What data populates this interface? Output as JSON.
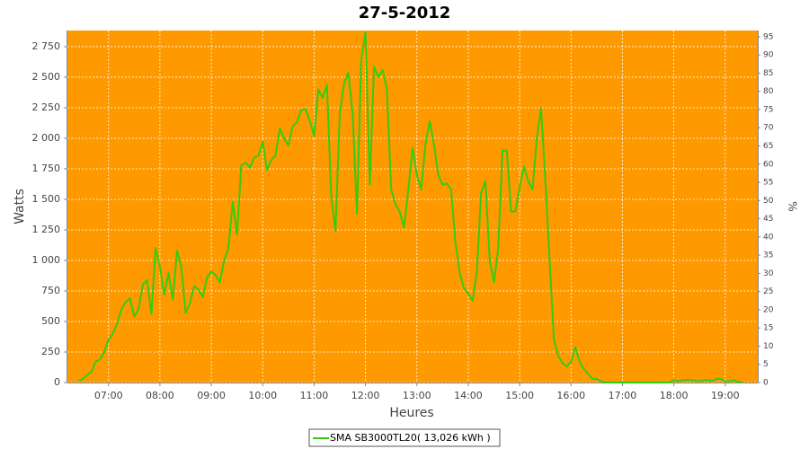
{
  "chart_data": {
    "type": "line",
    "title": "27-5-2012",
    "x_label": "Heures",
    "y_label": "Watts",
    "y2_label": "%",
    "x": [
      "06:25",
      "06:30",
      "06:35",
      "06:40",
      "06:45",
      "06:50",
      "06:55",
      "07:00",
      "07:05",
      "07:10",
      "07:15",
      "07:20",
      "07:25",
      "07:30",
      "07:35",
      "07:40",
      "07:45",
      "07:50",
      "07:55",
      "08:00",
      "08:05",
      "08:10",
      "08:15",
      "08:20",
      "08:25",
      "08:30",
      "08:35",
      "08:40",
      "08:45",
      "08:50",
      "08:55",
      "09:00",
      "09:05",
      "09:10",
      "09:15",
      "09:20",
      "09:25",
      "09:30",
      "09:35",
      "09:40",
      "09:45",
      "09:50",
      "09:55",
      "10:00",
      "10:05",
      "10:10",
      "10:15",
      "10:20",
      "10:25",
      "10:30",
      "10:35",
      "10:40",
      "10:45",
      "10:50",
      "10:55",
      "11:00",
      "11:05",
      "11:10",
      "11:15",
      "11:20",
      "11:25",
      "11:30",
      "11:35",
      "11:40",
      "11:45",
      "11:50",
      "11:55",
      "12:00",
      "12:05",
      "12:10",
      "12:15",
      "12:20",
      "12:25",
      "12:30",
      "12:35",
      "12:40",
      "12:45",
      "12:50",
      "12:55",
      "13:00",
      "13:05",
      "13:10",
      "13:15",
      "13:20",
      "13:25",
      "13:30",
      "13:35",
      "13:40",
      "13:45",
      "13:50",
      "13:55",
      "14:00",
      "14:05",
      "14:10",
      "14:15",
      "14:20",
      "14:25",
      "14:30",
      "14:35",
      "14:40",
      "14:45",
      "14:50",
      "14:55",
      "15:00",
      "15:05",
      "15:10",
      "15:15",
      "15:20",
      "15:25",
      "15:30",
      "15:35",
      "15:40",
      "15:45",
      "15:50",
      "15:55",
      "16:00",
      "16:05",
      "16:10",
      "16:15",
      "16:20",
      "16:25",
      "16:30",
      "16:35",
      "16:40",
      "17:55",
      "18:00",
      "18:05",
      "18:10",
      "18:15",
      "18:20",
      "18:30",
      "18:35",
      "18:45",
      "18:50",
      "18:55",
      "19:00",
      "19:05",
      "19:10",
      "19:15",
      "19:20"
    ],
    "series": [
      {
        "name": "SMA SB3000TL20( 13,026 kWh )",
        "color": "#33cc11",
        "values": [
          15,
          30,
          60,
          90,
          170,
          190,
          250,
          350,
          400,
          480,
          600,
          660,
          690,
          540,
          600,
          800,
          840,
          560,
          1100,
          950,
          720,
          900,
          680,
          1080,
          950,
          570,
          650,
          790,
          760,
          700,
          860,
          910,
          880,
          820,
          1000,
          1100,
          1480,
          1210,
          1780,
          1800,
          1760,
          1840,
          1860,
          1970,
          1740,
          1820,
          1860,
          2080,
          2000,
          1940,
          2100,
          2130,
          2230,
          2240,
          2140,
          2020,
          2400,
          2330,
          2440,
          1520,
          1240,
          2200,
          2450,
          2540,
          2200,
          1380,
          2640,
          2870,
          1620,
          2590,
          2500,
          2560,
          2400,
          1580,
          1460,
          1400,
          1270,
          1580,
          1920,
          1700,
          1580,
          1950,
          2140,
          1950,
          1700,
          1620,
          1630,
          1580,
          1150,
          900,
          770,
          730,
          670,
          900,
          1550,
          1650,
          1000,
          820,
          1100,
          1900,
          1900,
          1400,
          1400,
          1600,
          1770,
          1650,
          1580,
          2000,
          2250,
          1650,
          1000,
          350,
          220,
          160,
          130,
          170,
          290,
          170,
          110,
          70,
          30,
          30,
          10,
          0,
          0,
          20,
          10,
          20,
          20,
          20,
          10,
          20,
          15,
          30,
          30,
          10,
          10,
          20,
          5,
          0
        ]
      }
    ],
    "xlim": [
      "06:12",
      "19:38"
    ],
    "xticks": [
      "07:00",
      "08:00",
      "09:00",
      "10:00",
      "11:00",
      "12:00",
      "13:00",
      "14:00",
      "15:00",
      "16:00",
      "17:00",
      "18:00",
      "19:00"
    ],
    "ylim": [
      0,
      2882
    ],
    "yticks": [
      0,
      250,
      500,
      750,
      {
        "value": 1000,
        "label": "1 000"
      },
      {
        "value": 1250,
        "label": "1 250"
      },
      {
        "value": 1500,
        "label": "1 500"
      },
      {
        "value": 1750,
        "label": "1 750"
      },
      {
        "value": 2000,
        "label": "2 000"
      },
      {
        "value": 2250,
        "label": "2 250"
      },
      {
        "value": 2500,
        "label": "2 500"
      },
      {
        "value": 2750,
        "label": "2 750"
      }
    ],
    "y2lim": [
      0,
      96.7
    ],
    "y2ticks": [
      0,
      5,
      10,
      15,
      20,
      25,
      30,
      35,
      40,
      45,
      50,
      55,
      60,
      65,
      70,
      75,
      80,
      85,
      90,
      95
    ],
    "grid": true,
    "plot_background": "#ff9900",
    "legend": "bottom"
  }
}
